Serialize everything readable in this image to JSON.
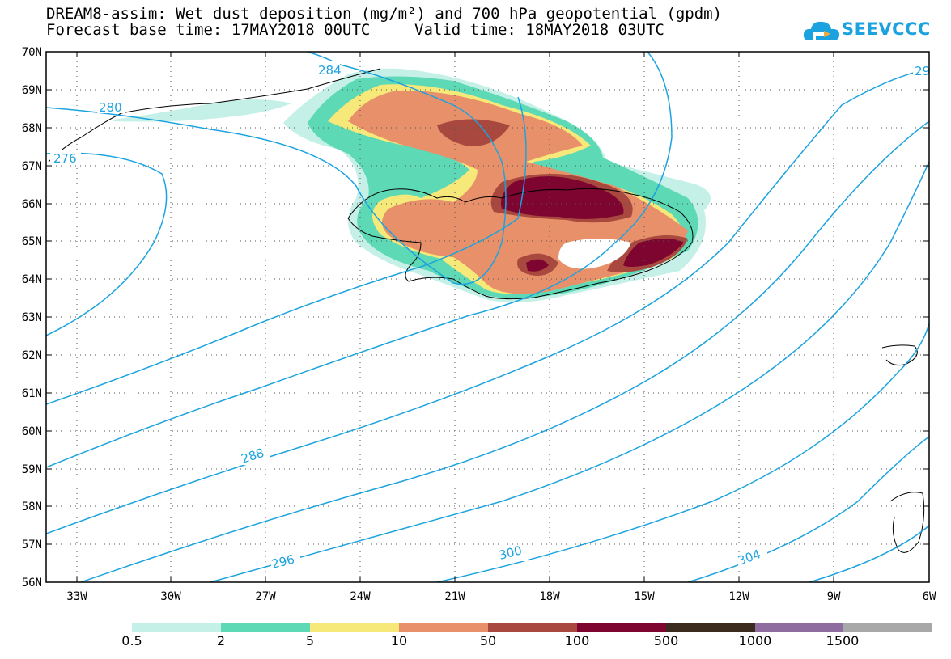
{
  "title": {
    "line1": "DREAM8-assim: Wet dust deposition (mg/m²) and 700 hPa geopotential (gpdm)",
    "line2": "Forecast base time: 17MAY2018 00UTC",
    "valid": "Valid time: 18MAY2018 03UTC"
  },
  "logo": {
    "text": "SEEVCCC",
    "icon": "cloud-icon"
  },
  "map": {
    "lat_labels": [
      "70N",
      "69N",
      "68N",
      "67N",
      "66N",
      "65N",
      "64N",
      "63N",
      "62N",
      "61N",
      "60N",
      "59N",
      "58N",
      "57N",
      "56N"
    ],
    "lon_labels": [
      "33W",
      "30W",
      "27W",
      "24W",
      "21W",
      "18W",
      "15W",
      "12W",
      "9W",
      "6W"
    ],
    "lat_range": [
      56,
      70
    ],
    "lon_range": [
      -34.2,
      -6
    ],
    "grid": true,
    "contour_color": "#1ca3df",
    "contour_labels": [
      "284",
      "280",
      "276",
      "288",
      "296",
      "300",
      "304",
      "29"
    ]
  },
  "legend": {
    "ticks": [
      "0.5",
      "2",
      "5",
      "10",
      "50",
      "100",
      "500",
      "1000",
      "1500"
    ],
    "colors": [
      "#c4f0e8",
      "#5ed9b5",
      "#f7e87a",
      "#e8906a",
      "#a8483e",
      "#7d0530",
      "#3b2a1e",
      "#8f6ca0",
      "#a8a8a8"
    ]
  }
}
